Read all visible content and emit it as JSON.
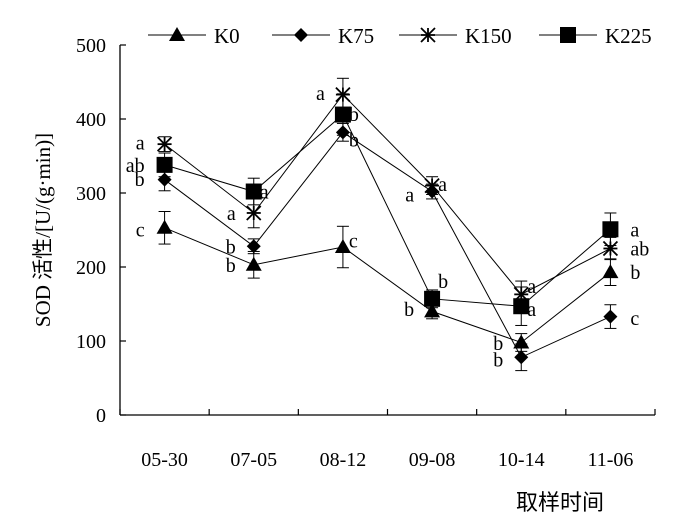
{
  "chart_data": {
    "type": "line",
    "xlabel": "取样时间",
    "ylabel": "SOD 活性/[U/(g·min)]",
    "ylim": [
      0,
      500
    ],
    "yticks": [
      0,
      100,
      200,
      300,
      400,
      500
    ],
    "categories": [
      "05-30",
      "07-05",
      "08-12",
      "09-08",
      "10-14",
      "11-06"
    ],
    "legend_position": "top",
    "series": [
      {
        "name": "K0",
        "marker": "triangle",
        "values": [
          253,
          203,
          227,
          140,
          98,
          193
        ],
        "errors": [
          22,
          18,
          28,
          10,
          12,
          18
        ]
      },
      {
        "name": "K75",
        "marker": "diamond",
        "values": [
          318,
          228,
          382,
          302,
          78,
          133
        ],
        "errors": [
          15,
          10,
          12,
          10,
          18,
          16
        ]
      },
      {
        "name": "K150",
        "marker": "asterisk",
        "values": [
          366,
          273,
          433,
          310,
          163,
          225
        ],
        "errors": [
          10,
          20,
          22,
          12,
          18,
          15
        ]
      },
      {
        "name": "K225",
        "marker": "square",
        "values": [
          338,
          302,
          406,
          157,
          147,
          251
        ],
        "errors": [
          16,
          18,
          28,
          12,
          26,
          22
        ]
      }
    ],
    "annotations": [
      {
        "text": "a",
        "x": "05-30",
        "y": 368
      },
      {
        "text": "ab",
        "x": "05-30",
        "y": 338
      },
      {
        "text": "b",
        "x": "05-30",
        "y": 319
      },
      {
        "text": "c",
        "x": "05-30",
        "y": 251
      },
      {
        "text": "a",
        "x": "07-05",
        "y": 273
      },
      {
        "text": "a",
        "x": "07-05",
        "y": 302
      },
      {
        "text": "b",
        "x": "07-05",
        "y": 228
      },
      {
        "text": "b",
        "x": "07-05",
        "y": 203
      },
      {
        "text": "a",
        "x": "08-12",
        "y": 435
      },
      {
        "text": "b",
        "x": "08-12",
        "y": 407
      },
      {
        "text": "b",
        "x": "08-12",
        "y": 372
      },
      {
        "text": "c",
        "x": "08-12",
        "y": 236
      },
      {
        "text": "a",
        "x": "09-08",
        "y": 312
      },
      {
        "text": "a",
        "x": "09-08",
        "y": 298
      },
      {
        "text": "b",
        "x": "09-08",
        "y": 181
      },
      {
        "text": "b",
        "x": "09-08",
        "y": 143
      },
      {
        "text": "a",
        "x": "10-14",
        "y": 174
      },
      {
        "text": "a",
        "x": "10-14",
        "y": 143
      },
      {
        "text": "b",
        "x": "10-14",
        "y": 97
      },
      {
        "text": "b",
        "x": "10-14",
        "y": 75
      },
      {
        "text": "a",
        "x": "11-06",
        "y": 251
      },
      {
        "text": "ab",
        "x": "11-06",
        "y": 225
      },
      {
        "text": "b",
        "x": "11-06",
        "y": 193
      },
      {
        "text": "c",
        "x": "11-06",
        "y": 131
      }
    ]
  }
}
